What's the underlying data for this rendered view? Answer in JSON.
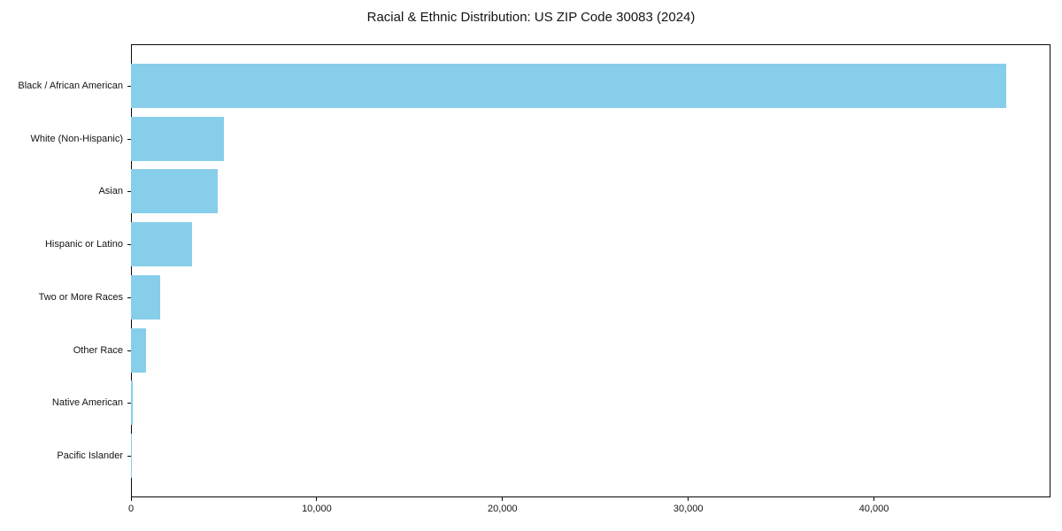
{
  "chart_data": {
    "type": "bar",
    "orientation": "horizontal",
    "title": "Racial & Ethnic Distribution: US ZIP Code 30083 (2024)",
    "categories": [
      "Black / African American",
      "White (Non-Hispanic)",
      "Asian",
      "Hispanic or Latino",
      "Two or More Races",
      "Other Race",
      "Native American",
      "Pacific Islander"
    ],
    "values": [
      47100,
      5010,
      4680,
      3290,
      1580,
      810,
      90,
      25
    ],
    "bar_color": "#87CEEB",
    "xlabel": "",
    "ylabel": "",
    "xlim": [
      0,
      49500
    ],
    "x_ticks": [
      0,
      10000,
      20000,
      30000,
      40000
    ],
    "x_tick_labels": [
      "0",
      "10,000",
      "20,000",
      "30,000",
      "40,000"
    ],
    "grid": false,
    "legend": false,
    "plot_border_color": "#0a0a0a",
    "text_color": "#141414"
  }
}
